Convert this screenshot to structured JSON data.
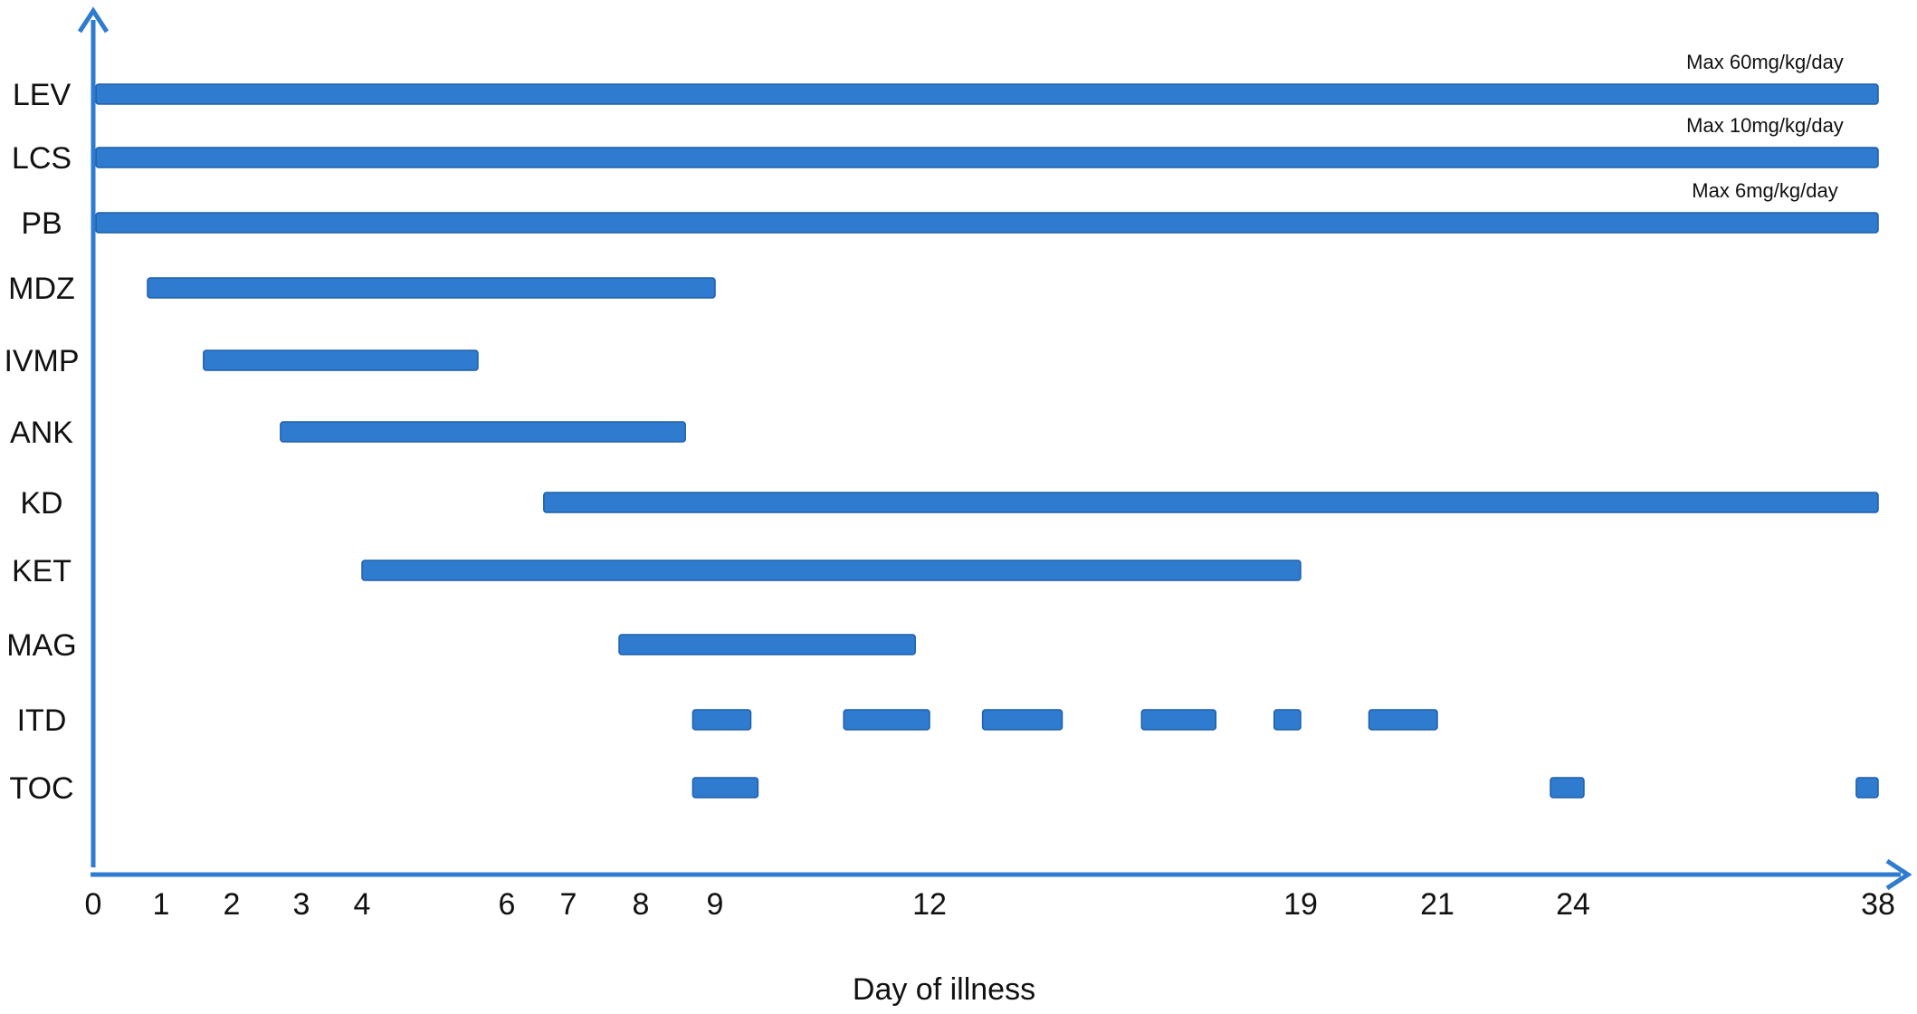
{
  "chart_data": {
    "type": "gantt",
    "xlabel": "Day of illness",
    "ylabel": "",
    "title": "",
    "x_ticks": [
      "0",
      "1",
      "2",
      "3",
      "4",
      "6",
      "7",
      "8",
      "9",
      "12",
      "19",
      "21",
      "24",
      "38"
    ],
    "categories": [
      "LEV",
      "LCS",
      "PB",
      "MDZ",
      "IVMP",
      "ANK",
      "KD",
      "KET",
      "MAG",
      "ITD",
      "TOC"
    ],
    "bar_color": "#2e7bcf",
    "axis_color": "#2e7bcf",
    "grid": false,
    "series": [
      {
        "label": "LEV",
        "note": "Max 60mg/kg/day",
        "segments": [
          [
            0,
            38
          ]
        ]
      },
      {
        "label": "LCS",
        "note": "Max 10mg/kg/day",
        "segments": [
          [
            0,
            38
          ]
        ]
      },
      {
        "label": "PB",
        "note": "Max 6mg/kg/day",
        "segments": [
          [
            0,
            38
          ]
        ]
      },
      {
        "label": "MDZ",
        "segments": [
          [
            0.8,
            9
          ]
        ]
      },
      {
        "label": "IVMP",
        "segments": [
          [
            1.6,
            5.6
          ]
        ]
      },
      {
        "label": "ANK",
        "segments": [
          [
            2.7,
            8.6
          ]
        ]
      },
      {
        "label": "KD",
        "segments": [
          [
            6.6,
            38
          ]
        ]
      },
      {
        "label": "KET",
        "segments": [
          [
            4,
            19
          ]
        ]
      },
      {
        "label": "MAG",
        "segments": [
          [
            7.7,
            11.8
          ]
        ]
      },
      {
        "label": "ITD",
        "segments": [
          [
            8.7,
            9.5
          ],
          [
            10.8,
            12
          ],
          [
            13,
            14.5
          ],
          [
            16,
            17.4
          ],
          [
            18.5,
            19
          ],
          [
            20,
            21
          ]
        ]
      },
      {
        "label": "TOC",
        "segments": [
          [
            8.7,
            9.6
          ],
          [
            23.5,
            24.5
          ],
          [
            37,
            38
          ]
        ]
      }
    ]
  }
}
